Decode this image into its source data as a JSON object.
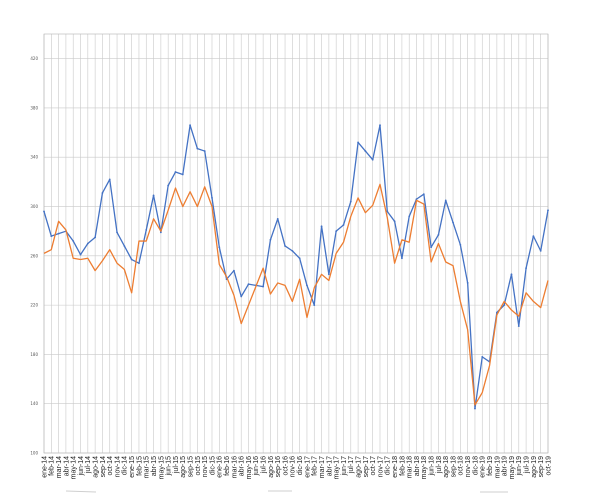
{
  "chart_data": {
    "type": "line",
    "title": "",
    "xlabel": "",
    "ylabel": "",
    "grid": true,
    "legend": "none",
    "ylim": [
      100,
      440
    ],
    "yticks": [
      "100",
      "140",
      "180",
      "220",
      "260",
      "300",
      "340",
      "380",
      "420"
    ],
    "categories": [
      "ene-14",
      "feb-14",
      "mar-14",
      "abr-14",
      "may-14",
      "jun-14",
      "jul-14",
      "ago-14",
      "sep-14",
      "oct-14",
      "nov-14",
      "dic-14",
      "ene-15",
      "feb-15",
      "mar-15",
      "abr-15",
      "may-15",
      "jun-15",
      "jul-15",
      "ago-15",
      "sep-15",
      "oct-15",
      "nov-15",
      "dic-15",
      "ene-16",
      "feb-16",
      "mar-16",
      "abr-16",
      "may-16",
      "jun-16",
      "jul-16",
      "ago-16",
      "sep-16",
      "oct-16",
      "nov-16",
      "dic-16",
      "ene-17",
      "feb-17",
      "mar-17",
      "abr-17",
      "may-17",
      "jun-17",
      "jul-17",
      "ago-17",
      "sep-17",
      "oct-17",
      "nov-17",
      "dic-17",
      "ene-18",
      "feb-18",
      "mar-18",
      "abr-18",
      "may-18",
      "jun-18",
      "jul-18",
      "ago-18",
      "sep-18",
      "oct-18",
      "nov-18",
      "dic-18",
      "ene-19",
      "feb-19",
      "mar-19",
      "abr-19",
      "may-19",
      "jun-19",
      "jul-19",
      "ago-19",
      "sep-19",
      "oct-19"
    ],
    "series": [
      {
        "color": "#4472c4",
        "values": [
          296,
          276,
          278,
          280,
          272,
          261,
          270,
          275,
          311,
          322,
          279,
          268,
          257,
          254,
          281,
          309,
          279,
          317,
          328,
          326,
          366,
          347,
          345,
          307,
          267,
          241,
          248,
          227,
          237,
          236,
          235,
          273,
          290,
          268,
          264,
          258,
          236,
          220,
          284,
          245,
          280,
          285,
          304,
          352,
          345,
          338,
          366,
          296,
          288,
          258,
          292,
          306,
          310,
          267,
          277,
          305,
          287,
          269,
          238,
          136,
          178,
          174,
          214,
          220,
          245,
          203,
          250,
          276,
          264,
          297
        ]
      },
      {
        "color": "#ed7d31",
        "values": [
          262,
          265,
          288,
          281,
          258,
          257,
          258,
          248,
          256,
          265,
          254,
          249,
          230,
          272,
          272,
          290,
          280,
          297,
          315,
          300,
          312,
          300,
          316,
          300,
          253,
          243,
          228,
          205,
          220,
          235,
          250,
          229,
          238,
          236,
          223,
          241,
          210,
          234,
          245,
          240,
          262,
          271,
          292,
          307,
          295,
          301,
          318,
          291,
          254,
          273,
          271,
          305,
          302,
          255,
          270,
          255,
          252,
          223,
          200,
          139,
          149,
          171,
          212,
          223,
          216,
          211,
          230,
          223,
          218,
          240
        ]
      }
    ]
  }
}
